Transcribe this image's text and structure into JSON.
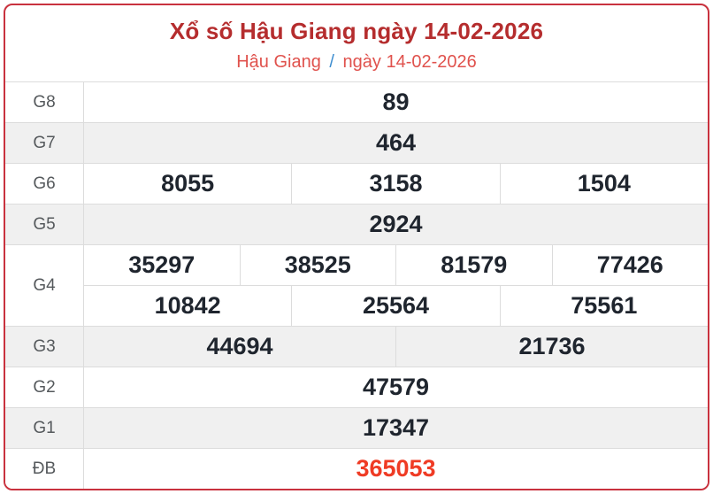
{
  "header": {
    "title": "Xổ số Hậu Giang ngày 14-02-2026",
    "breadcrumb": {
      "region": "Hậu Giang",
      "separator": "/",
      "date": "ngày 14-02-2026"
    }
  },
  "table": {
    "rows": [
      {
        "label": "G8",
        "cells": [
          "89"
        ]
      },
      {
        "label": "G7",
        "cells": [
          "464"
        ]
      },
      {
        "label": "G6",
        "cells": [
          "8055",
          "3158",
          "1504"
        ]
      },
      {
        "label": "G5",
        "cells": [
          "2924"
        ]
      },
      {
        "label": "G4",
        "cells_row1": [
          "35297",
          "38525",
          "81579",
          "77426"
        ],
        "cells_row2": [
          "10842",
          "25564",
          "75561"
        ]
      },
      {
        "label": "G3",
        "cells": [
          "44694",
          "21736"
        ]
      },
      {
        "label": "G2",
        "cells": [
          "47579"
        ]
      },
      {
        "label": "G1",
        "cells": [
          "17347"
        ]
      },
      {
        "label": "ĐB",
        "cells": [
          "365053"
        ]
      }
    ]
  },
  "colors": {
    "border": "#c9323e",
    "title": "#b52d2e",
    "subtitle_red": "#e0524d",
    "separator_blue": "#3e8ed0",
    "number": "#1f252e",
    "jackpot": "#ef3b24",
    "stripe": "#f0f0f0",
    "label": "#55595c"
  }
}
